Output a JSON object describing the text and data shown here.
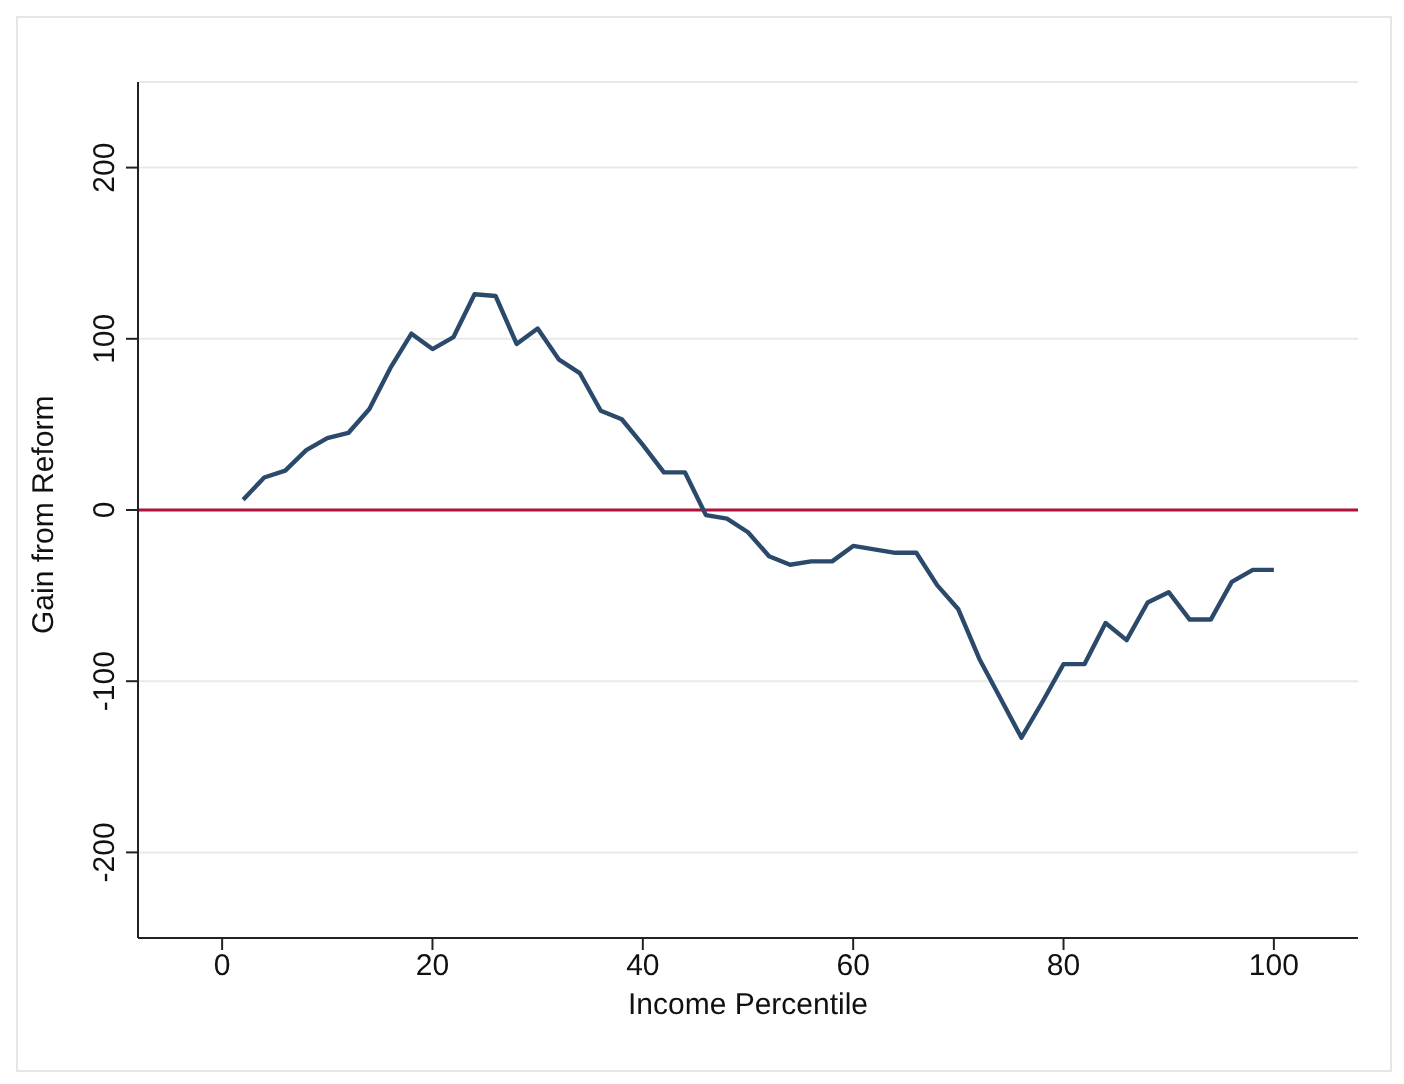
{
  "chart_data": {
    "type": "line",
    "xlabel": "Income Percentile",
    "ylabel": "Gain from Reform",
    "x": [
      2,
      4,
      6,
      8,
      10,
      12,
      14,
      16,
      18,
      20,
      22,
      24,
      26,
      28,
      30,
      32,
      34,
      36,
      38,
      40,
      42,
      44,
      46,
      48,
      50,
      52,
      54,
      56,
      58,
      60,
      62,
      64,
      66,
      68,
      70,
      72,
      74,
      76,
      78,
      80,
      82,
      84,
      86,
      88,
      90,
      92,
      94,
      96,
      98,
      100
    ],
    "series": [
      {
        "color": "#2b4a6b",
        "values": [
          6,
          19,
          23,
          35,
          42,
          45,
          59,
          83,
          103,
          94,
          101,
          126,
          125,
          97,
          106,
          88,
          80,
          58,
          53,
          38,
          22,
          22,
          -3,
          -5,
          -13,
          -27,
          -32,
          -30,
          -30,
          -21,
          -23,
          -25,
          -25,
          -44,
          -58,
          -87,
          -110,
          -133,
          -112,
          -90,
          -90,
          -66,
          -76,
          -54,
          -48,
          -64,
          -64,
          -42,
          -35,
          -35
        ]
      }
    ],
    "xlim": [
      -8,
      108
    ],
    "xticks": [
      0,
      20,
      40,
      60,
      80,
      100
    ],
    "ylim": [
      -250,
      250
    ],
    "yticks": [
      -200,
      -100,
      0,
      100,
      200
    ],
    "grid": "y",
    "marker": "none",
    "line_style": "solid",
    "ref_lines": [
      {
        "axis": "y",
        "value": 0,
        "color": "#b0103a"
      }
    ]
  }
}
